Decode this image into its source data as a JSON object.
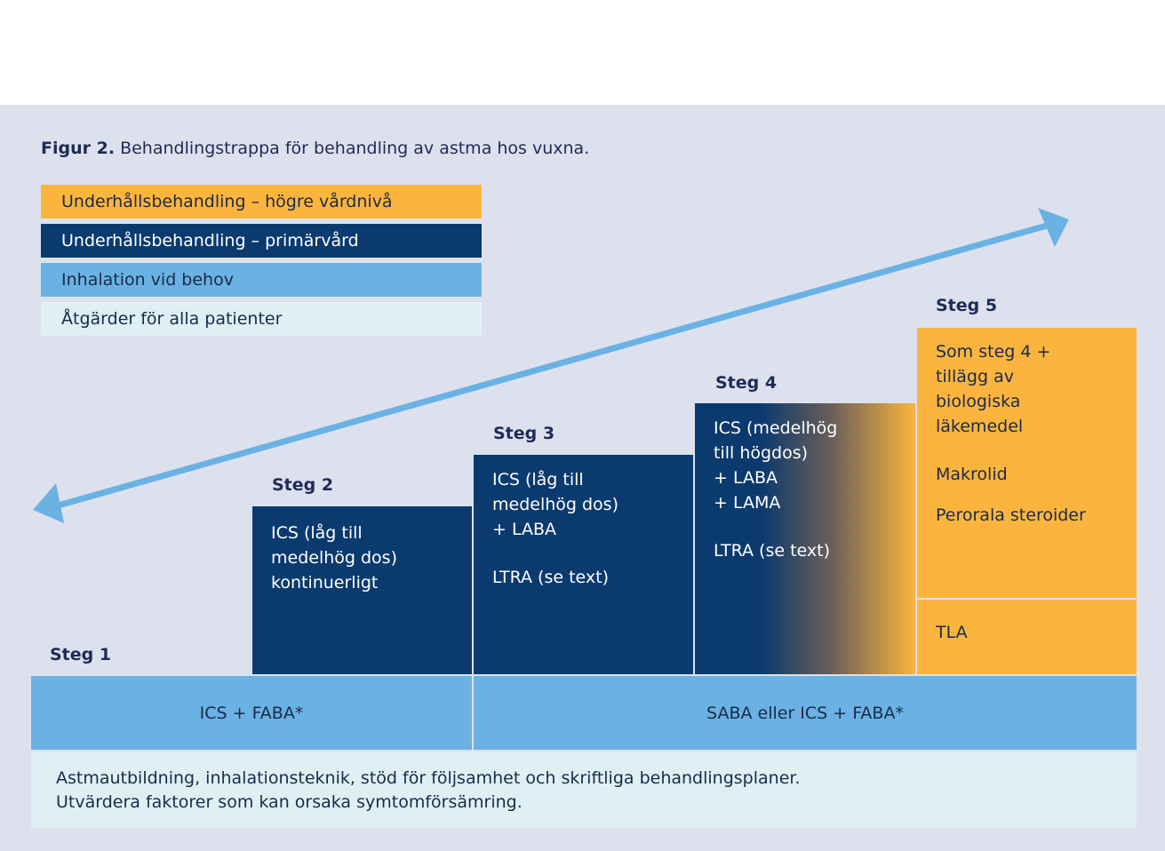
{
  "figure": {
    "title_bold": "Figur 2.",
    "title_rest": " Behandlingstrappa för behandling av astma hos vuxna."
  },
  "legend": [
    {
      "label": "Underhållsbehandling – högre vårdnivå",
      "color": "#fbb53f"
    },
    {
      "label": "Underhållsbehandling – primärvård",
      "color": "#0b3a6e"
    },
    {
      "label": "Inhalation vid behov",
      "color": "#6ab2e3"
    },
    {
      "label": "Åtgärder för alla patienter",
      "color": "#dff0f4"
    }
  ],
  "steps": [
    {
      "label": "Steg 1"
    },
    {
      "label": "Steg 2",
      "lines": [
        "ICS (låg till",
        "medelhög dos)",
        "kontinuerligt"
      ]
    },
    {
      "label": "Steg 3",
      "lines": [
        "ICS (låg till",
        "medelhög dos)",
        "+ LABA"
      ],
      "extra": "LTRA (se text)"
    },
    {
      "label": "Steg 4",
      "lines": [
        "ICS (medelhög",
        "till högdos)",
        "+ LABA",
        "+ LAMA"
      ],
      "extra": "LTRA (se text)"
    },
    {
      "label": "Steg 5",
      "lines": [
        "Som steg 4 +",
        "tillägg av",
        "biologiska",
        "läkemedel"
      ],
      "extra": [
        "Makrolid",
        "Perorala steroider"
      ],
      "tla": "TLA"
    }
  ],
  "inhalation": {
    "left": "ICS + FABA*",
    "right": "SABA eller ICS + FABA*"
  },
  "all_patients": {
    "line1": "Astmautbildning, inhalationsteknik, stöd för följsamhet och skriftliga behandlingsplaner.",
    "line2": "Utvärdera faktorer som kan orsaka symtomförsämring."
  },
  "colors": {
    "background": "#dde1ee",
    "arrow": "#6ab2e3"
  },
  "icons": {
    "arrow": "double-headed-arrow-icon"
  }
}
